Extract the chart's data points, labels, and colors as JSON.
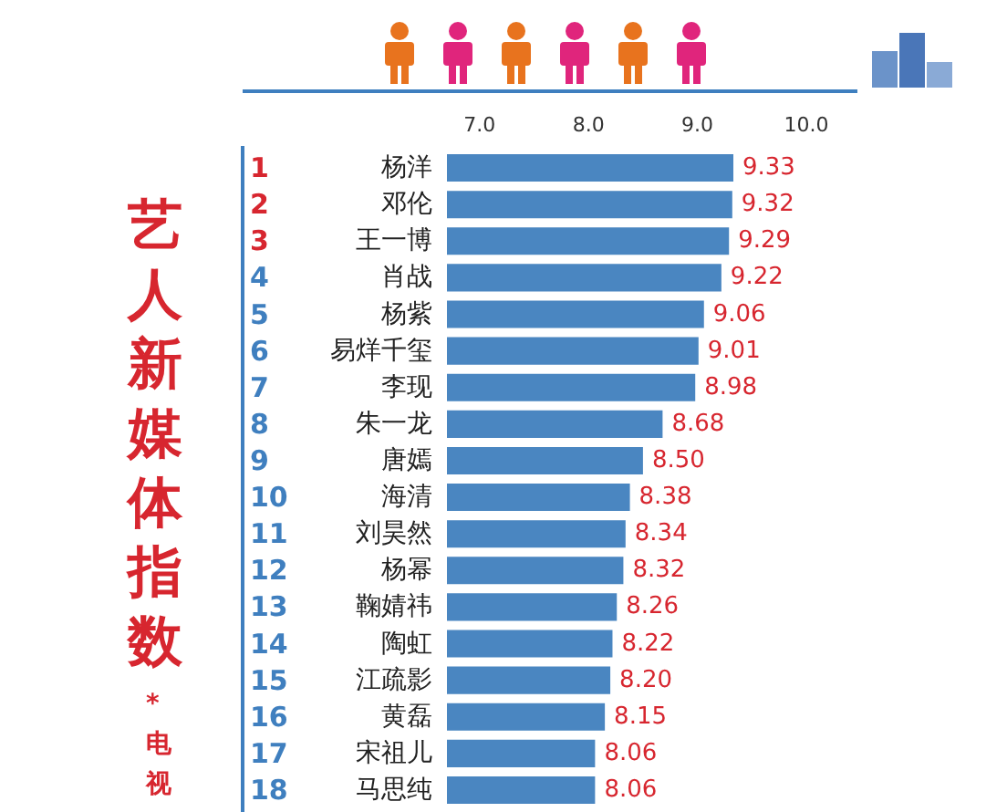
{
  "chart_data": {
    "type": "bar",
    "orientation": "horizontal",
    "title": "艺人新媒体指数",
    "subtitle": "*电视",
    "categories": [
      "1 杨洋",
      "2 邓伦",
      "3 王一博",
      "4 肖战",
      "5 杨紫",
      "6 易烊千玺",
      "7 李现",
      "8 朱一龙",
      "9 唐嫣",
      "10 海清",
      "11 刘昊然",
      "12 杨幂",
      "13 鞠婧祎",
      "14 陶虹",
      "15 江疏影",
      "16 黄磊",
      "17 宋祖儿",
      "18 马思纯"
    ],
    "values": [
      9.33,
      9.32,
      9.29,
      9.22,
      9.06,
      9.01,
      8.98,
      8.68,
      8.5,
      8.38,
      8.34,
      8.32,
      8.26,
      8.22,
      8.2,
      8.15,
      8.06,
      8.06
    ],
    "value_labels": [
      "9.33",
      "9.32",
      "9.29",
      "9.22",
      "9.06",
      "9.01",
      "8.98",
      "8.68",
      "8.50",
      "8.38",
      "8.34",
      "8.32",
      "8.26",
      "8.22",
      "8.20",
      "8.15",
      "8.06",
      "8.06"
    ],
    "color": "#4a86c1",
    "xlim": [
      6.7,
      10
    ],
    "xticks": [
      {
        "value": 7,
        "label": "7.0"
      },
      {
        "value": 8,
        "label": "8.0"
      },
      {
        "value": 9,
        "label": "9.0"
      },
      {
        "value": 10,
        "label": "10.0"
      }
    ],
    "grid": false
  }
}
